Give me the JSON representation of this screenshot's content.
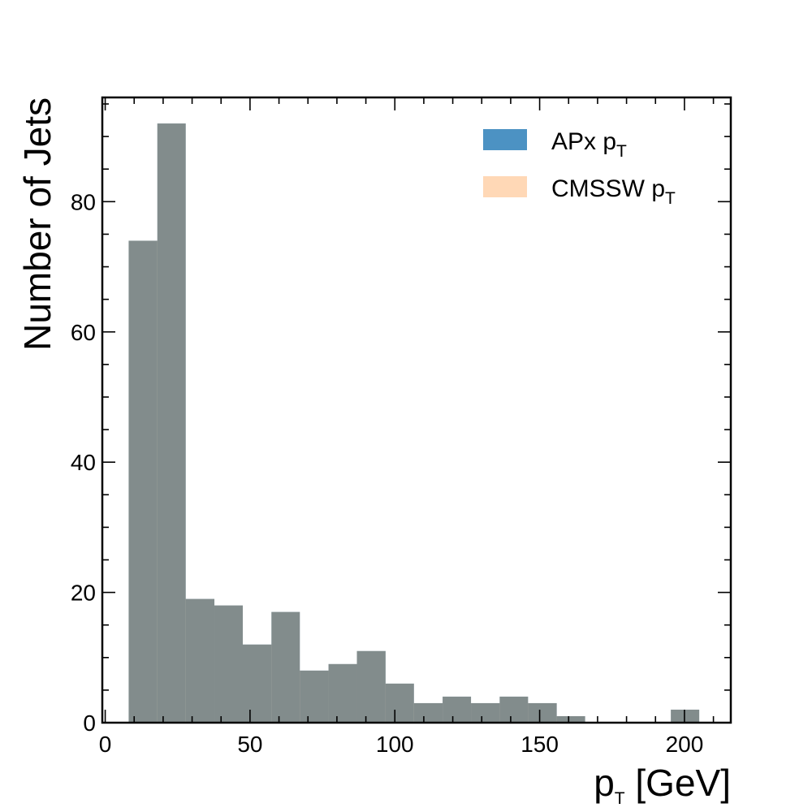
{
  "chart_data": {
    "type": "bar",
    "histogram": true,
    "xlabel": "p",
    "xlabel_sub": "T",
    "xlabel_unit": " [GeV]",
    "ylabel": "Number of Jets",
    "xlim": [
      -1,
      216
    ],
    "ylim": [
      0,
      96
    ],
    "bin_edges": [
      8.1,
      18.0,
      27.8,
      37.7,
      47.5,
      57.4,
      67.2,
      77.1,
      86.9,
      96.8,
      106.6,
      116.5,
      126.3,
      136.2,
      146.0,
      155.9,
      165.7,
      175.6,
      185.4,
      195.3,
      205.1
    ],
    "series": [
      {
        "name": "APx p",
        "name_sub": "T",
        "color": "#1f77b4",
        "alpha": 0.8,
        "values": [
          74,
          92,
          19,
          18,
          12,
          17,
          8,
          9,
          11,
          6,
          3,
          4,
          3,
          4,
          3,
          1,
          0,
          0,
          0,
          2
        ]
      },
      {
        "name": "CMSSW p",
        "name_sub": "T",
        "color": "#ff7f0e",
        "alpha": 0.3,
        "values": [
          74,
          92,
          19,
          18,
          12,
          17,
          8,
          9,
          11,
          6,
          3,
          4,
          3,
          4,
          3,
          1,
          0,
          0,
          0,
          2
        ]
      }
    ],
    "x_major_ticks": [
      0,
      50,
      100,
      150,
      200
    ],
    "x_minor_step": 10,
    "y_major_ticks": [
      0,
      20,
      40,
      60,
      80
    ],
    "y_minor_step": 5,
    "legend_position": "top-right",
    "grid": false
  }
}
